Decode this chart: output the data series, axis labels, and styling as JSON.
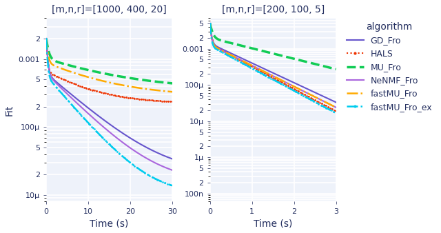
{
  "plot1_title": "[m,n,r]=[1000, 400, 20]",
  "plot2_title": "[m,n,r]=[200, 100, 5]",
  "xlabel": "Time (s)",
  "ylabel": "Fit",
  "legend_title": "algorithm",
  "algorithms": [
    "GD_Fro",
    "HALS",
    "MU_Fro",
    "NeNMF_Fro",
    "fastMU_Fro",
    "fastMU_Fro_ex"
  ],
  "colors": [
    "#6655cc",
    "#ee3300",
    "#11cc55",
    "#aa66dd",
    "#ffaa00",
    "#00ccee"
  ],
  "linestyles": [
    "-",
    ":",
    "--",
    "-",
    "-.",
    "-."
  ],
  "linewidths": [
    1.5,
    1.5,
    2.5,
    1.5,
    1.8,
    1.8
  ],
  "plot1_xlim": [
    0,
    30
  ],
  "plot1_ylim": [
    8e-06,
    0.004
  ],
  "plot2_xlim": [
    0,
    3
  ],
  "plot2_ylim": [
    6e-08,
    0.007
  ],
  "plot1_yticks": [
    1e-05,
    2e-05,
    5e-05,
    0.0001,
    0.0002,
    0.0005,
    0.001,
    0.002
  ],
  "plot1_yticklabels": [
    "10μ",
    "2",
    "5",
    "100μ",
    "2",
    "5",
    "0.001",
    "2"
  ],
  "plot2_yticks": [
    1e-07,
    2e-07,
    5e-07,
    1e-06,
    2e-06,
    5e-06,
    1e-05,
    2e-05,
    5e-05,
    0.0001,
    0.0002,
    0.0005,
    0.001,
    0.002,
    0.005
  ],
  "plot2_yticklabels": [
    "100n",
    "2",
    "5",
    "1μ",
    "2",
    "5",
    "10μ",
    "2",
    "5",
    "100μ",
    "2",
    "5",
    "0.001",
    "2",
    "5"
  ],
  "bg_color": "#eef2fa",
  "grid_color": "#ffffff",
  "text_color": "#253060",
  "title_fontsize": 10,
  "label_fontsize": 10,
  "tick_fontsize": 8,
  "legend_fontsize": 9
}
